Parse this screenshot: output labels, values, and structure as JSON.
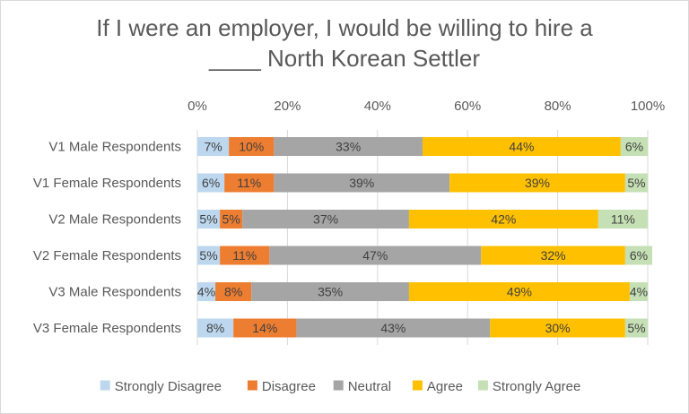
{
  "chart_data": {
    "type": "bar",
    "orientation": "horizontal",
    "stacked": true,
    "title_lines": [
      "If I were an employer, I would be willing to hire a",
      "____ North Korean Settler"
    ],
    "xlim": [
      0,
      100
    ],
    "x_ticks": [
      "0%",
      "20%",
      "40%",
      "60%",
      "80%",
      "100%"
    ],
    "categories": [
      "V1 Male Respondents",
      "V1 Female Respondents",
      "V2 Male Respondents",
      "V2 Female Respondents",
      "V3 Male Respondents",
      "V3 Female Respondents"
    ],
    "series": [
      {
        "name": "Strongly Disagree",
        "color": "#bdd7ee",
        "values": [
          7,
          6,
          5,
          5,
          4,
          8
        ]
      },
      {
        "name": "Disagree",
        "color": "#ed7d31",
        "values": [
          10,
          11,
          5,
          11,
          8,
          14
        ]
      },
      {
        "name": "Neutral",
        "color": "#a5a5a5",
        "values": [
          33,
          39,
          37,
          47,
          35,
          43
        ]
      },
      {
        "name": "Agree",
        "color": "#ffc000",
        "values": [
          44,
          39,
          42,
          32,
          49,
          30
        ]
      },
      {
        "name": "Strongly Agree",
        "color": "#c5e0b4",
        "values": [
          6,
          5,
          11,
          6,
          4,
          5
        ]
      }
    ],
    "legend_position": "bottom",
    "grid": true
  }
}
